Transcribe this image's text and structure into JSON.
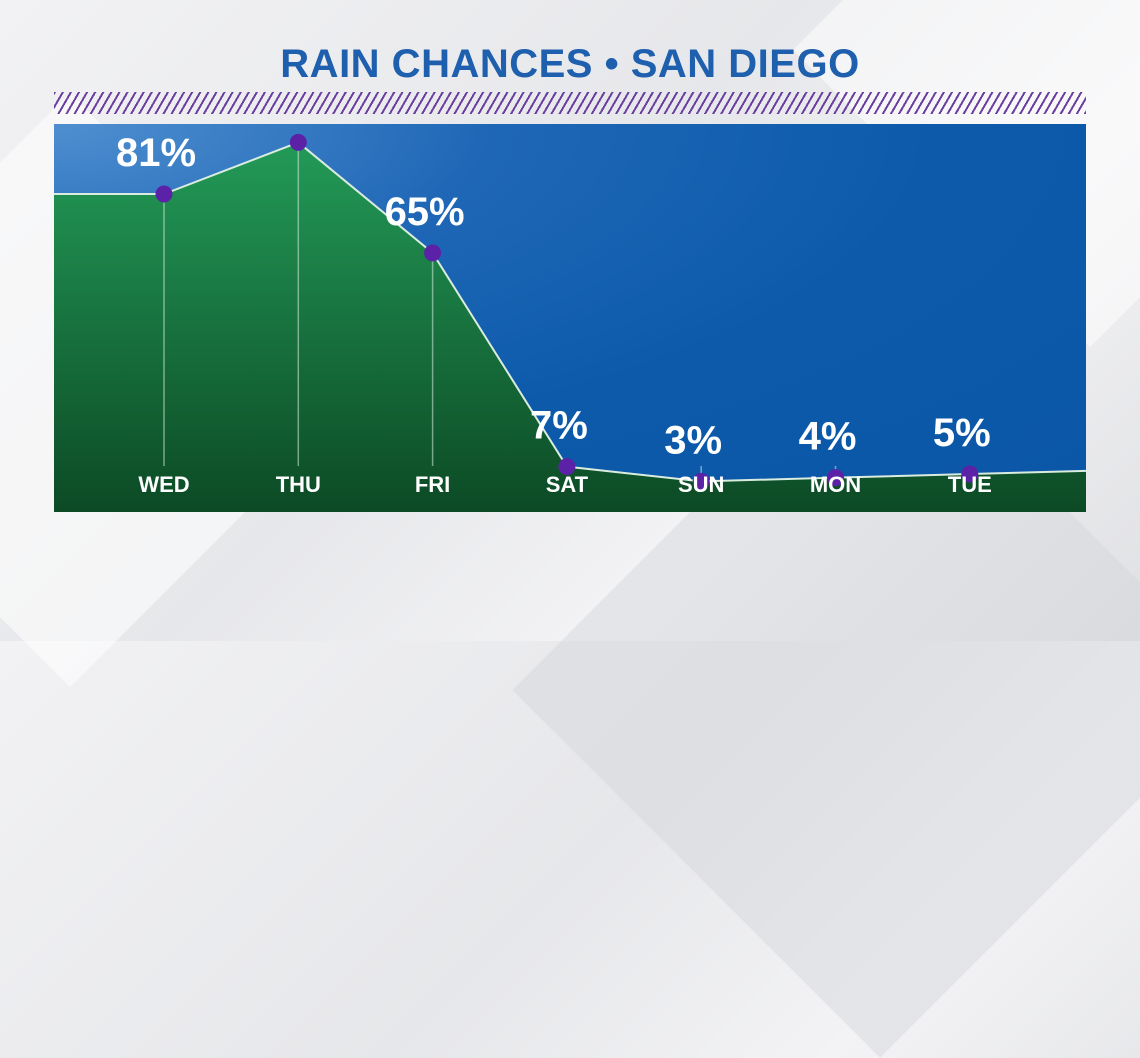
{
  "chart_data": {
    "type": "area",
    "title": "RAIN CHANCES • SAN DIEGO",
    "categories": [
      "WED",
      "THU",
      "FRI",
      "SAT",
      "SUN",
      "MON",
      "TUE"
    ],
    "values": [
      81,
      95,
      65,
      7,
      3,
      4,
      5
    ],
    "unit": "%",
    "ylim": [
      -14,
      100
    ],
    "xlabel": "",
    "ylabel": "",
    "grid": false,
    "colors": {
      "fill_top": "#239a57",
      "fill_bottom": "#0c4a25",
      "marker": "#5b22a8",
      "line": "#d9ecdf",
      "text": "#ffffff",
      "title": "#1e5fae"
    }
  }
}
